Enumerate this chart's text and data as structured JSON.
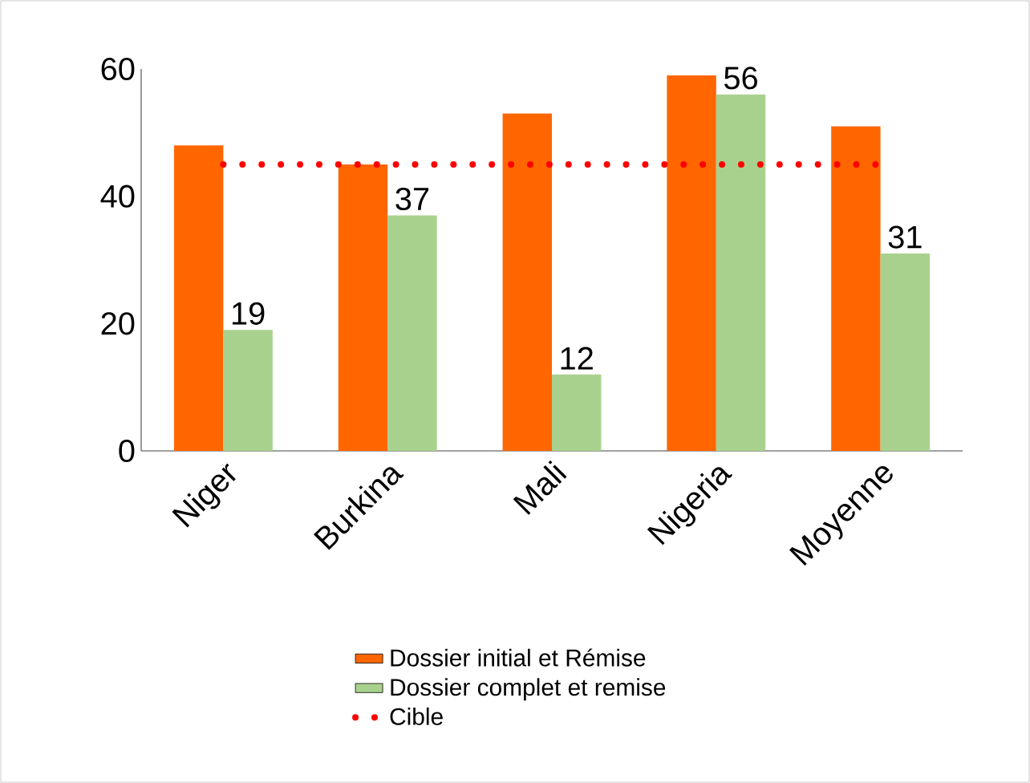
{
  "chart_data": {
    "type": "bar",
    "categories": [
      "Niger",
      "Burkina",
      "Mali",
      "Nigeria",
      "Moyenne"
    ],
    "series": [
      {
        "name": "Dossier initial et Rémise",
        "color": "#ff6600",
        "values": [
          48,
          45,
          53,
          59,
          51
        ]
      },
      {
        "name": "Dossier complet et remise",
        "color": "#a9d18e",
        "values": [
          19,
          37,
          12,
          56,
          31
        ],
        "value_labels": [
          "19",
          "37",
          "12",
          "56",
          "31"
        ]
      },
      {
        "name": "Cible",
        "type": "line",
        "line_style": "dotted",
        "color": "#ff0000",
        "values": [
          45,
          45,
          45,
          45,
          45
        ]
      }
    ],
    "ylim": [
      0,
      60
    ],
    "yticks": [
      0,
      20,
      40,
      60
    ],
    "grid": false,
    "legend": "bottom"
  }
}
